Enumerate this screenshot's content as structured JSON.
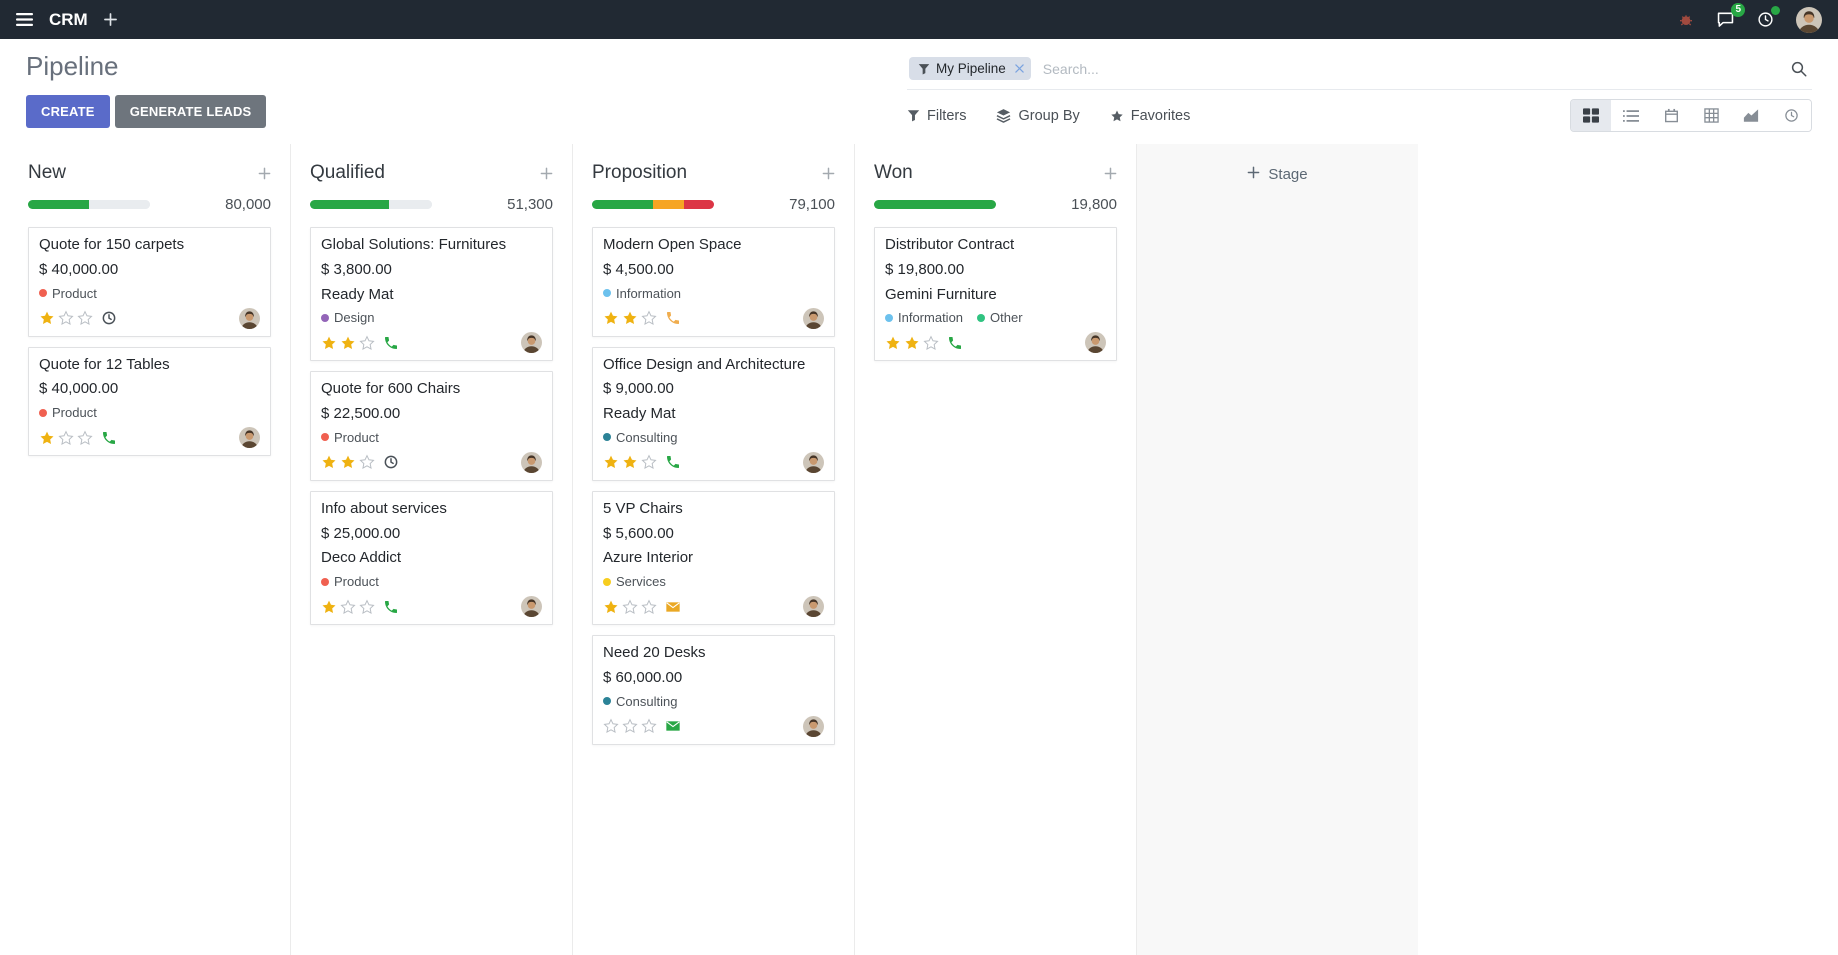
{
  "theme": {
    "topbar_bg": "#212933",
    "primary_button_bg": "#5a6bc9",
    "secondary_button_bg": "#6e757d",
    "facet_bg": "#d8dee8",
    "progress_track": "#e9ecef",
    "star_filled": "#efb211",
    "star_empty": "#b9bec4",
    "badge_green": "#28a745",
    "success_green": "#28a745",
    "warning_orange": "#f0ad4e",
    "danger_red": "#dc3545"
  },
  "icons": [
    "menu-icon",
    "plus-icon",
    "bug-icon",
    "messages-icon",
    "activities-icon",
    "filter-funnel-icon",
    "remove-facet-icon",
    "magnifier-icon",
    "group-by-icon",
    "favorites-star-icon",
    "kanban-view-icon",
    "list-view-icon",
    "calendar-view-icon",
    "pivot-view-icon",
    "graph-view-icon",
    "activity-view-icon",
    "star-filled-icon",
    "star-empty-icon",
    "phone-icon",
    "envelope-icon",
    "clock-icon"
  ],
  "topbar": {
    "app_name": "CRM",
    "messages_badge": "5"
  },
  "control_panel": {
    "title": "Pipeline",
    "create_label": "CREATE",
    "generate_leads_label": "GENERATE LEADS",
    "search": {
      "facet_label": "My Pipeline",
      "placeholder": "Search..."
    },
    "filters_label": "Filters",
    "group_by_label": "Group By",
    "favorites_label": "Favorites",
    "view_switcher": {
      "active": "kanban",
      "views": [
        "kanban",
        "list",
        "calendar",
        "pivot",
        "graph",
        "activity"
      ]
    }
  },
  "board": {
    "add_stage_label": "Stage",
    "columns": [
      {
        "name": "New",
        "total": "80,000",
        "progress": [
          {
            "color": "#28a745",
            "pct": 50
          },
          {
            "color": "#e9ecef",
            "pct": 50
          }
        ],
        "cards": [
          {
            "title": "Quote for 150 carpets",
            "amount": "$ 40,000.00",
            "partner": "",
            "tags": [
              {
                "label": "Product",
                "color": "#F06050"
              }
            ],
            "stars": 1,
            "activity": {
              "icon": "clock-icon",
              "color": "#495057"
            }
          },
          {
            "title": "Quote for 12 Tables",
            "amount": "$ 40,000.00",
            "partner": "",
            "tags": [
              {
                "label": "Product",
                "color": "#F06050"
              }
            ],
            "stars": 1,
            "activity": {
              "icon": "phone-icon",
              "color": "#28a745"
            }
          }
        ]
      },
      {
        "name": "Qualified",
        "total": "51,300",
        "progress": [
          {
            "color": "#28a745",
            "pct": 65
          },
          {
            "color": "#e9ecef",
            "pct": 35
          }
        ],
        "cards": [
          {
            "title": "Global Solutions: Furnitures",
            "amount": "$ 3,800.00",
            "partner": "Ready Mat",
            "tags": [
              {
                "label": "Design",
                "color": "#9365B8"
              }
            ],
            "stars": 2,
            "activity": {
              "icon": "phone-icon",
              "color": "#28a745"
            }
          },
          {
            "title": "Quote for 600 Chairs",
            "amount": "$ 22,500.00",
            "partner": "",
            "tags": [
              {
                "label": "Product",
                "color": "#F06050"
              }
            ],
            "stars": 2,
            "activity": {
              "icon": "clock-icon",
              "color": "#495057"
            }
          },
          {
            "title": "Info about services",
            "amount": "$ 25,000.00",
            "partner": "Deco Addict",
            "tags": [
              {
                "label": "Product",
                "color": "#F06050"
              }
            ],
            "stars": 1,
            "activity": {
              "icon": "phone-icon",
              "color": "#28a745"
            }
          }
        ]
      },
      {
        "name": "Proposition",
        "total": "79,100",
        "progress": [
          {
            "color": "#28a745",
            "pct": 50
          },
          {
            "color": "#f6a523",
            "pct": 25
          },
          {
            "color": "#dc3545",
            "pct": 25
          }
        ],
        "cards": [
          {
            "title": "Modern Open Space",
            "amount": "$ 4,500.00",
            "partner": "",
            "tags": [
              {
                "label": "Information",
                "color": "#6CC1ED"
              }
            ],
            "stars": 2,
            "activity": {
              "icon": "phone-icon",
              "color": "#f0ad4e"
            }
          },
          {
            "title": "Office Design and Architecture",
            "amount": "$ 9,000.00",
            "partner": "Ready Mat",
            "tags": [
              {
                "label": "Consulting",
                "color": "#2C8397"
              }
            ],
            "stars": 2,
            "activity": {
              "icon": "phone-icon",
              "color": "#28a745"
            }
          },
          {
            "title": "5 VP Chairs",
            "amount": "$ 5,600.00",
            "partner": "Azure Interior",
            "tags": [
              {
                "label": "Services",
                "color": "#F7CD1F"
              }
            ],
            "stars": 1,
            "activity": {
              "icon": "envelope-icon",
              "color": "#eaa824"
            }
          },
          {
            "title": "Need 20 Desks",
            "amount": "$ 60,000.00",
            "partner": "",
            "tags": [
              {
                "label": "Consulting",
                "color": "#2C8397"
              }
            ],
            "stars": 0,
            "activity": {
              "icon": "envelope-icon",
              "color": "#28a745"
            }
          }
        ]
      },
      {
        "name": "Won",
        "total": "19,800",
        "progress": [
          {
            "color": "#28a745",
            "pct": 100
          }
        ],
        "cards": [
          {
            "title": "Distributor Contract",
            "amount": "$ 19,800.00",
            "partner": "Gemini Furniture",
            "tags": [
              {
                "label": "Information",
                "color": "#6CC1ED"
              },
              {
                "label": "Other",
                "color": "#30C381"
              }
            ],
            "stars": 2,
            "activity": {
              "icon": "phone-icon",
              "color": "#28a745"
            }
          }
        ]
      }
    ]
  }
}
